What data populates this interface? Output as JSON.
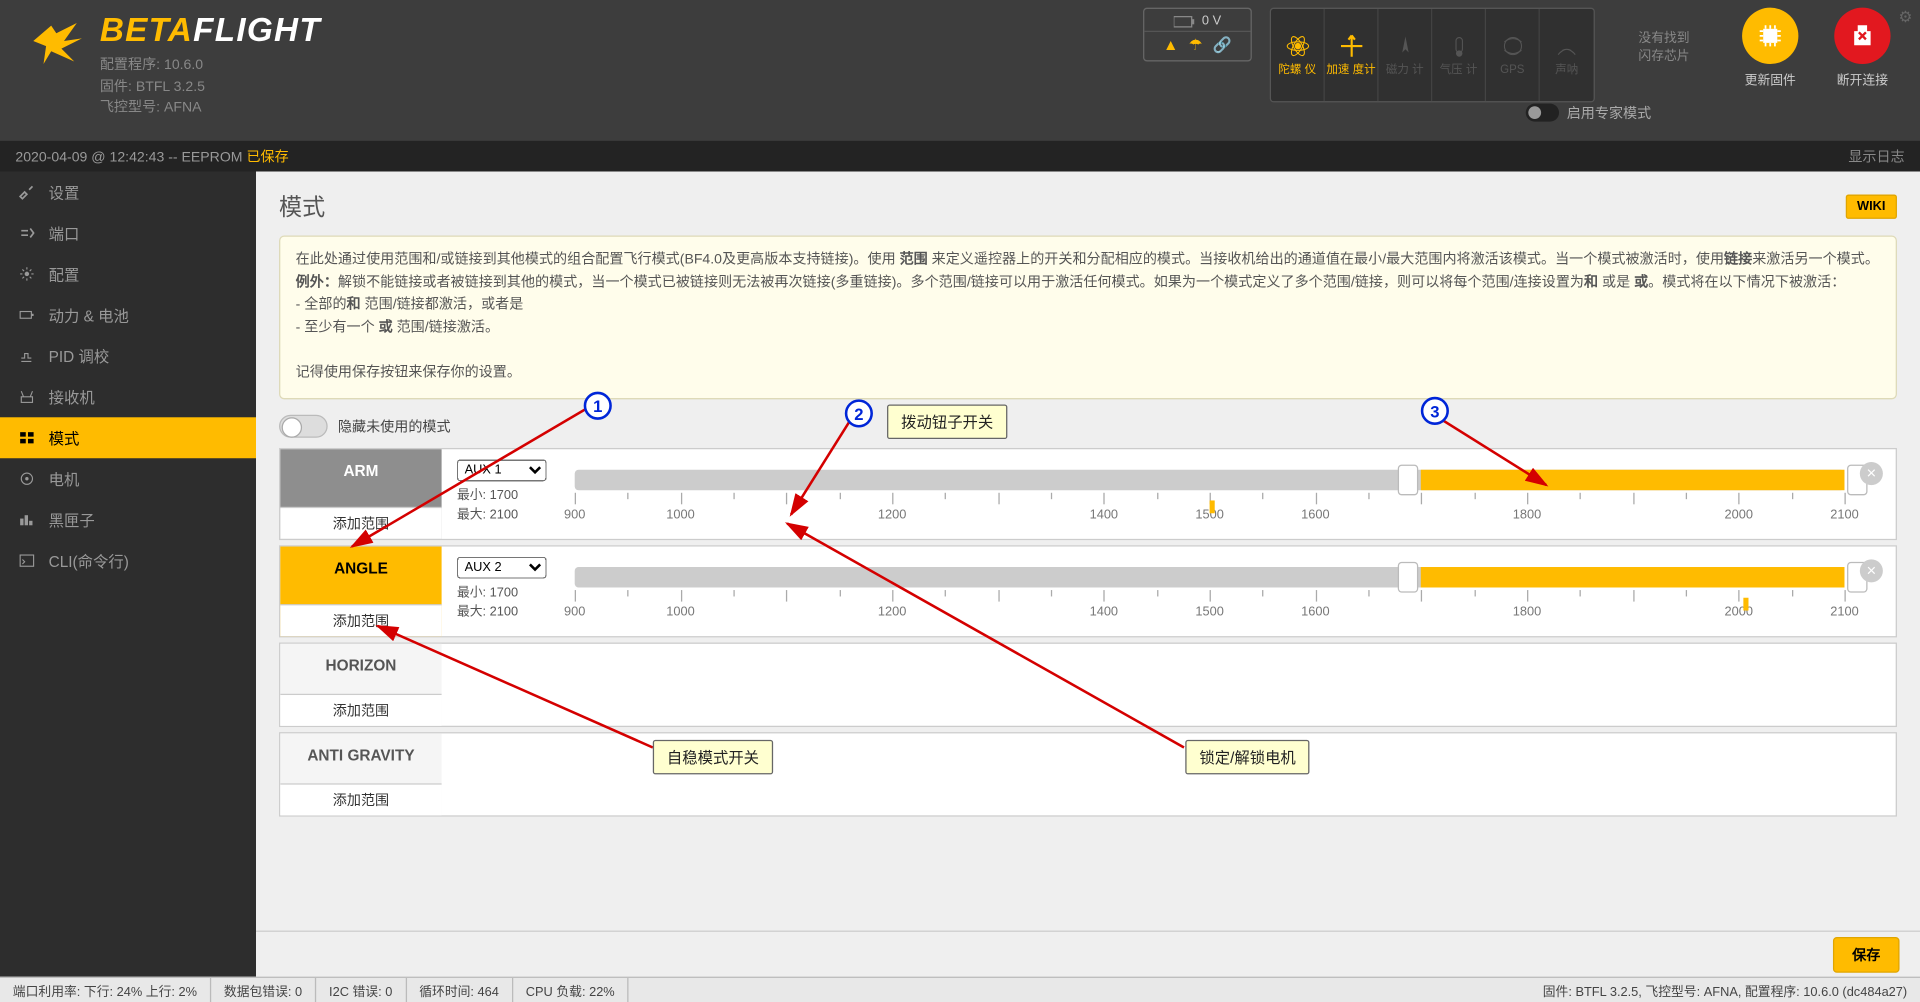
{
  "brand": {
    "a": "BETA",
    "b": "FLIGHT"
  },
  "meta": {
    "config": "配置程序: 10.6.0",
    "fw": "固件: BTFL 3.2.5",
    "target": "飞控型号: AFNA"
  },
  "battery": {
    "volt": "0 V"
  },
  "sensors": {
    "gyro": "陀螺\n仪",
    "accel": "加速\n度计",
    "mag": "磁力\n计",
    "baro": "气压\n计",
    "gps": "GPS",
    "sonar": "声呐"
  },
  "dataflash": {
    "l1": "没有找到",
    "l2": "闪存芯片"
  },
  "expert": "启用专家模式",
  "btn_update": "更新固件",
  "btn_disconnect": "断开连接",
  "status": {
    "ts": "2020-04-09 @ 12:42:43 -- EEPROM ",
    "saved": "已保存",
    "showlog": "显示日志"
  },
  "sidebar": {
    "setup": "设置",
    "ports": "端口",
    "config": "配置",
    "power": "动力 & 电池",
    "pid": "PID 调校",
    "rx": "接收机",
    "modes": "模式",
    "motors": "电机",
    "blackbox": "黑匣子",
    "cli": "CLI(命令行)"
  },
  "page": {
    "title": "模式",
    "wiki": "WIKI"
  },
  "note": {
    "p1a": "在此处通过使用范围和/或链接到其他模式的组合配置飞行模式(BF4.0及更高版本支持链接)。使用 ",
    "p1b": "范围",
    "p1c": " 来定义遥控器上的开关和分配相应的模式。当接收机给出的通道值在最小/最大范围内将激活该模式。当一个模式被激活时，使用",
    "p1d": "链接",
    "p1e": "来激活另一个模式。",
    "p1f": "例外：",
    "p1g": "解锁不能链接或者被链接到其他的模式，当一个模式已被链接则无法被再次链接(多重链接)。多个范围/链接可以用于激活任何模式。如果为一个模式定义了多个范围/链接，则可以将每个范围/连接设置为",
    "p1h": "和",
    "p1i": " 或是 ",
    "p1j": "或",
    "p1k": "。模式将在以下情况下被激活：",
    "p2": "- 全部的",
    "p2b": "和",
    "p2c": " 范围/链接都激活，或者是",
    "p3": "- 至少有一个 ",
    "p3b": "或",
    "p3c": " 范围/链接激活。",
    "p4": "记得使用保存按钮来保存你的设置。"
  },
  "hide_unused": "隐藏未使用的模式",
  "modes": {
    "arm": "ARM",
    "angle": "ANGLE",
    "horizon": "HORIZON",
    "antigrav": "ANTI GRAVITY"
  },
  "add_range": "添加范围",
  "aux": {
    "a1": "AUX 1",
    "a2": "AUX 2"
  },
  "minmax": {
    "min": "最小: 1700",
    "max": "最大: 2100"
  },
  "tick_labels": [
    "900",
    "1000",
    "1200",
    "1400",
    "1500",
    "1600",
    "1800",
    "2000",
    "2100"
  ],
  "tick_positions": [
    0,
    8.33,
    25,
    41.67,
    50,
    58.33,
    75,
    91.67,
    100
  ],
  "range": {
    "start_pct": 66.67,
    "end_pct": 100
  },
  "marker1_pct": 50,
  "marker2_pct": 92,
  "anno": {
    "n1": "1",
    "n2": "2",
    "n3": "3",
    "box1": "拨动钮子开关",
    "box2": "自稳模式开关",
    "box3": "锁定/解锁电机"
  },
  "save": "保存",
  "footer": {
    "port": "端口利用率:  下行: 24% 上行: 2%",
    "pkt": "数据包错误: 0",
    "i2c": "I2C 错误: 0",
    "cycle": "循环时间: 464",
    "cpu": "CPU 负载: 22%",
    "right": "固件: BTFL 3.2.5, 飞控型号: AFNA, 配置程序: 10.6.0 (dc484a27)"
  },
  "colors": {
    "accent": "#ffbb00"
  }
}
